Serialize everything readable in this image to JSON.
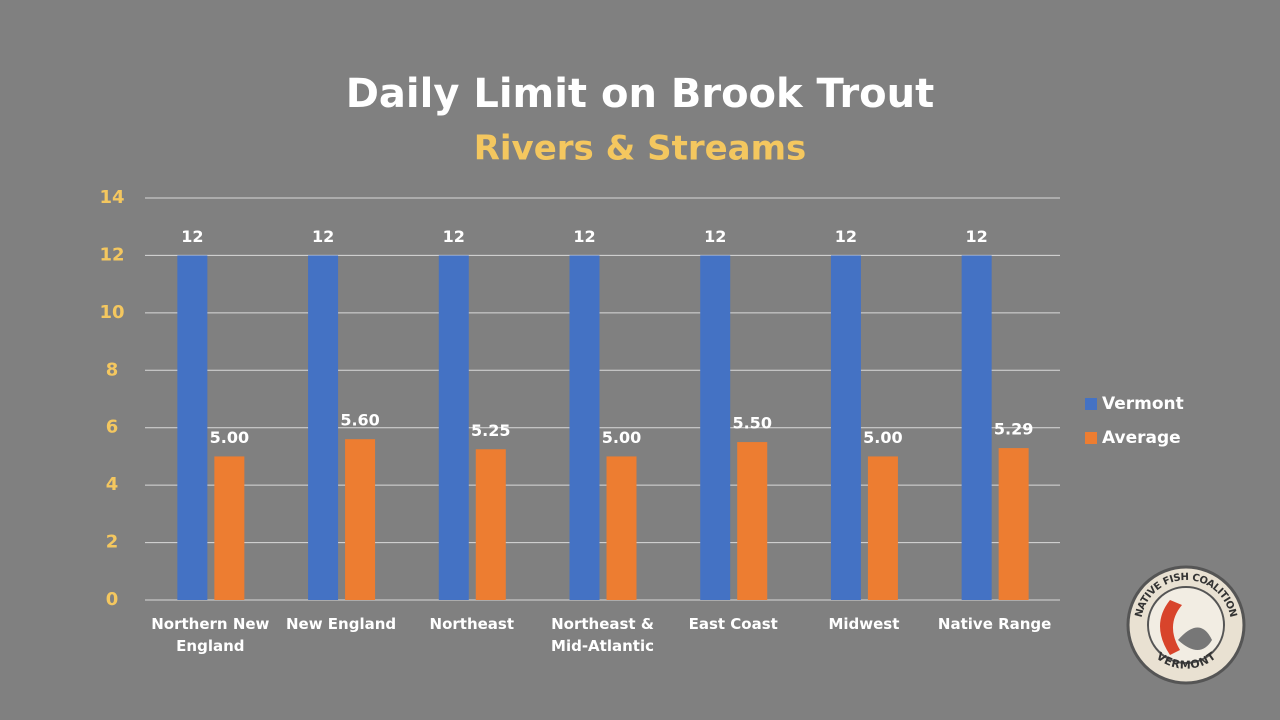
{
  "chart_data": {
    "type": "bar",
    "title": "Daily Limit on Brook Trout",
    "subtitle": "Rivers & Streams",
    "categories": [
      "Northern New England",
      "New England",
      "Northeast",
      "Northeast & Mid-Atlantic",
      "East Coast",
      "Midwest",
      "Native Range"
    ],
    "series": [
      {
        "name": "Vermont",
        "color": "#4472c4",
        "values": [
          12,
          12,
          12,
          12,
          12,
          12,
          12
        ]
      },
      {
        "name": "Average",
        "color": "#ed7d31",
        "values": [
          5,
          5.6,
          5.25,
          5,
          5.5,
          5,
          5.29
        ],
        "value_labels": [
          "5.00",
          "5.60",
          "5.25",
          "5.00",
          "5.50",
          "5.00",
          "5.29"
        ]
      }
    ],
    "ylim": [
      0,
      14
    ],
    "yticks": [
      0,
      2,
      4,
      6,
      8,
      10,
      12,
      14
    ],
    "grid": true,
    "legend": "right"
  },
  "logo": {
    "top": "NATIVE FISH COALITION",
    "bottom": "VERMONT"
  }
}
